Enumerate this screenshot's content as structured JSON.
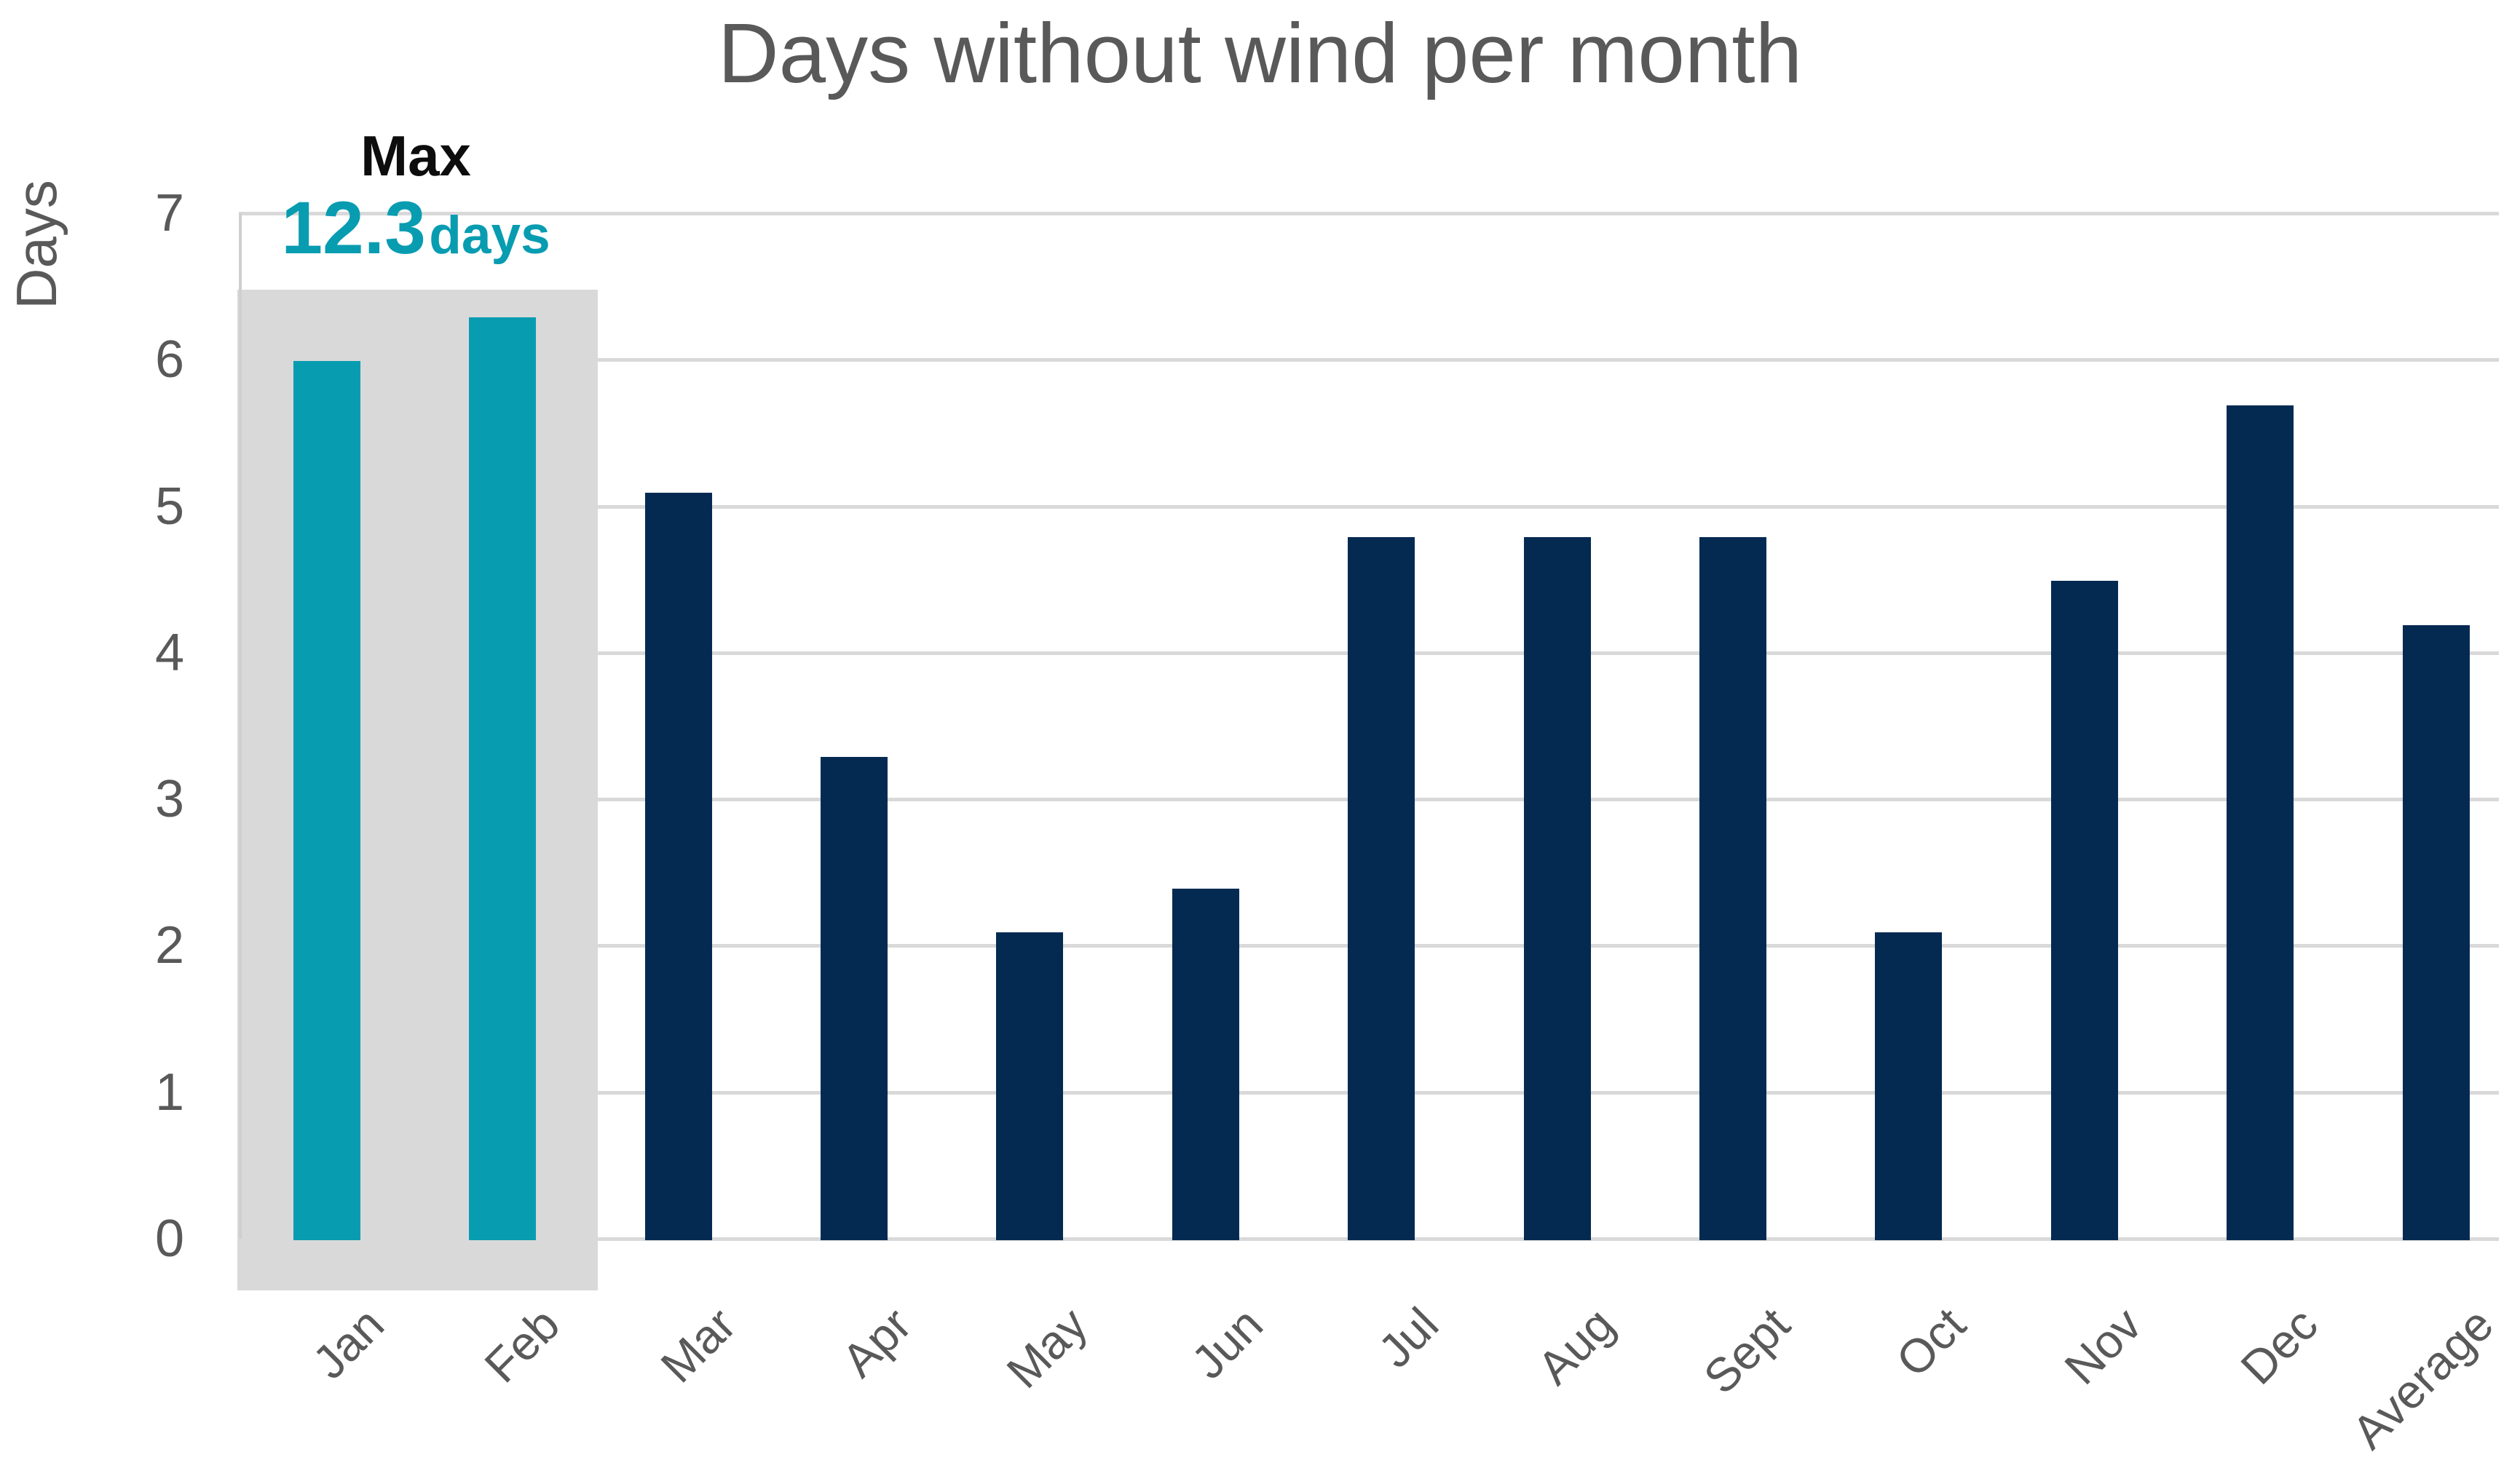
{
  "title": "Days without wind per month",
  "y_axis": {
    "label": "Days",
    "ticks": [
      7,
      6,
      5,
      4,
      3,
      2,
      1,
      0
    ]
  },
  "annotation": {
    "label": "Max",
    "value": "12.3",
    "unit": "days"
  },
  "colors": {
    "teal": "#089CB1",
    "navy": "#042A52",
    "highlight_box": "#D9D9D9",
    "gridline": "#D9D9D9",
    "axis_line": "#CFCFCF",
    "text_gray": "#595959",
    "annotation_black": "#0D0D0D"
  },
  "chart_data": {
    "type": "bar",
    "title": "Days without wind per month",
    "ylabel": "Days",
    "ylim": [
      0,
      7
    ],
    "grid": true,
    "legend": "none",
    "categories": [
      "Jan",
      "Feb",
      "Mar",
      "Apr",
      "May",
      "Jun",
      "Jul",
      "Aug",
      "Sept",
      "Oct",
      "Nov",
      "Dec",
      "Average"
    ],
    "values": [
      6.0,
      6.3,
      5.1,
      3.3,
      2.1,
      2.4,
      4.8,
      4.8,
      4.8,
      2.1,
      4.5,
      5.7,
      4.2
    ],
    "highlighted_categories": [
      "Jan",
      "Feb"
    ],
    "highlight_annotation": {
      "label": "Max",
      "value": 12.3,
      "unit": "days"
    }
  }
}
